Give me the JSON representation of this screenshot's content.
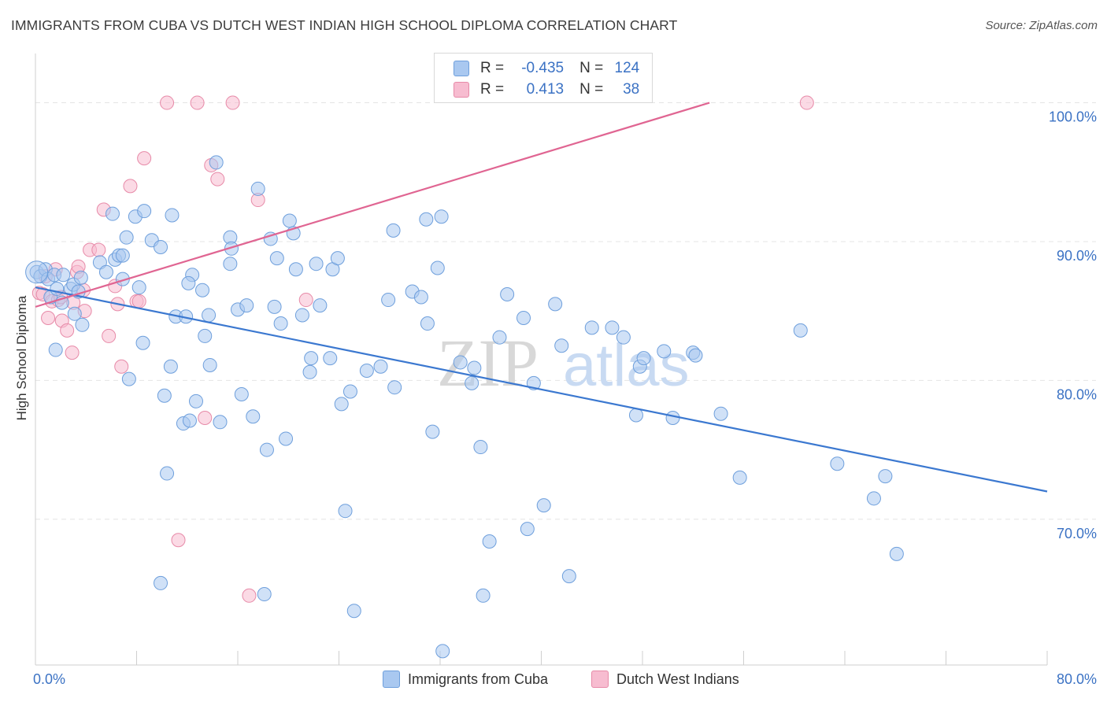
{
  "title": "IMMIGRANTS FROM CUBA VS DUTCH WEST INDIAN HIGH SCHOOL DIPLOMA CORRELATION CHART",
  "source": "Source: ZipAtlas.com",
  "watermark": {
    "zip": "ZIP",
    "atlas": "atlas"
  },
  "legend": {
    "rows": [
      {
        "r_label": "R =",
        "r_value": "-0.435",
        "n_label": "N =",
        "n_value": "124",
        "color": "#a9c8f0",
        "border": "#6e9fdc"
      },
      {
        "r_label": "R =",
        "r_value": "0.413",
        "n_label": "N =",
        "n_value": "38",
        "color": "#f7bcd0",
        "border": "#e78aa8"
      }
    ]
  },
  "bottom_legend": [
    "Immigrants from Cuba",
    "Dutch West Indians"
  ],
  "chart_data": {
    "type": "scatter",
    "xlabel": "",
    "ylabel": "High School Diploma",
    "x_tick_labels": [
      "0.0%",
      "80.0%"
    ],
    "y_tick_labels": [
      "100.0%",
      "90.0%",
      "80.0%",
      "70.0%"
    ],
    "y_ticks": [
      100,
      90,
      80,
      70
    ],
    "xlim": [
      0,
      80
    ],
    "ylim": [
      59.5,
      104
    ],
    "colors": {
      "cuba": "#6e9fdc",
      "cuba_fill": "#a9c8f0",
      "cuba_line": "#3b78d0",
      "dwi": "#e78aa8",
      "dwi_fill": "#f7bcd0",
      "dwi_line": "#e06592",
      "axis_text": "#3b72c4",
      "grid": "#e4e4e4"
    },
    "series": [
      {
        "name": "Immigrants from Cuba",
        "trend": {
          "x0": 0,
          "y0": 86.7,
          "x1": 80,
          "y1": 72.0
        },
        "points": [
          [
            0.1,
            87.8
          ],
          [
            0.4,
            87.5
          ],
          [
            0.8,
            88.0
          ],
          [
            1.0,
            87.3
          ],
          [
            1.2,
            86.0
          ],
          [
            1.5,
            87.6
          ],
          [
            1.7,
            86.6
          ],
          [
            2.1,
            85.6
          ],
          [
            2.2,
            87.6
          ],
          [
            2.8,
            86.6
          ],
          [
            3.0,
            86.9
          ],
          [
            3.1,
            84.8
          ],
          [
            3.4,
            86.4
          ],
          [
            3.6,
            87.4
          ],
          [
            3.7,
            84.0
          ],
          [
            1.6,
            82.2
          ],
          [
            5.1,
            88.5
          ],
          [
            5.6,
            87.8
          ],
          [
            6.1,
            92.0
          ],
          [
            6.3,
            88.7
          ],
          [
            6.6,
            89.0
          ],
          [
            6.9,
            89.0
          ],
          [
            7.2,
            90.3
          ],
          [
            7.4,
            80.1
          ],
          [
            7.9,
            91.8
          ],
          [
            8.2,
            86.7
          ],
          [
            8.6,
            92.2
          ],
          [
            8.5,
            82.7
          ],
          [
            9.2,
            90.1
          ],
          [
            9.9,
            89.6
          ],
          [
            10.2,
            78.9
          ],
          [
            10.7,
            81.0
          ],
          [
            10.8,
            91.9
          ],
          [
            11.1,
            84.6
          ],
          [
            11.7,
            76.9
          ],
          [
            11.9,
            84.6
          ],
          [
            12.2,
            77.1
          ],
          [
            12.4,
            87.6
          ],
          [
            12.7,
            78.5
          ],
          [
            13.2,
            86.5
          ],
          [
            13.4,
            83.2
          ],
          [
            13.7,
            84.7
          ],
          [
            13.8,
            81.1
          ],
          [
            14.3,
            95.7
          ],
          [
            14.6,
            77.0
          ],
          [
            15.4,
            90.3
          ],
          [
            15.5,
            89.5
          ],
          [
            15.4,
            88.4
          ],
          [
            16.0,
            85.1
          ],
          [
            16.3,
            79.0
          ],
          [
            16.7,
            85.4
          ],
          [
            17.2,
            77.4
          ],
          [
            17.6,
            93.8
          ],
          [
            18.3,
            75.0
          ],
          [
            18.6,
            90.2
          ],
          [
            18.9,
            85.3
          ],
          [
            19.1,
            88.8
          ],
          [
            19.4,
            84.1
          ],
          [
            19.8,
            75.8
          ],
          [
            20.1,
            91.5
          ],
          [
            20.4,
            90.6
          ],
          [
            20.6,
            88.0
          ],
          [
            21.1,
            84.7
          ],
          [
            21.7,
            80.6
          ],
          [
            21.8,
            81.6
          ],
          [
            22.2,
            88.4
          ],
          [
            22.5,
            85.4
          ],
          [
            23.3,
            81.6
          ],
          [
            23.5,
            88.0
          ],
          [
            23.9,
            88.8
          ],
          [
            24.2,
            78.3
          ],
          [
            24.5,
            70.6
          ],
          [
            24.9,
            79.2
          ],
          [
            26.2,
            80.7
          ],
          [
            27.3,
            81.0
          ],
          [
            27.9,
            85.8
          ],
          [
            28.3,
            90.8
          ],
          [
            28.4,
            79.5
          ],
          [
            29.8,
            86.4
          ],
          [
            30.5,
            86.0
          ],
          [
            30.9,
            91.6
          ],
          [
            31.0,
            84.1
          ],
          [
            31.4,
            76.3
          ],
          [
            31.8,
            88.1
          ],
          [
            32.1,
            91.8
          ],
          [
            33.6,
            81.3
          ],
          [
            34.5,
            79.8
          ],
          [
            34.7,
            80.9
          ],
          [
            35.2,
            75.2
          ],
          [
            35.9,
            68.4
          ],
          [
            36.7,
            83.1
          ],
          [
            37.3,
            86.2
          ],
          [
            38.6,
            84.5
          ],
          [
            38.9,
            69.3
          ],
          [
            39.4,
            79.8
          ],
          [
            40.2,
            71.0
          ],
          [
            41.1,
            85.5
          ],
          [
            41.6,
            82.5
          ],
          [
            42.2,
            65.9
          ],
          [
            44.0,
            83.8
          ],
          [
            45.6,
            83.8
          ],
          [
            46.5,
            83.1
          ],
          [
            47.5,
            77.5
          ],
          [
            47.8,
            81.0
          ],
          [
            48.1,
            81.6
          ],
          [
            49.7,
            82.1
          ],
          [
            50.4,
            77.3
          ],
          [
            52.0,
            82.0
          ],
          [
            52.2,
            81.8
          ],
          [
            54.2,
            77.6
          ],
          [
            55.7,
            73.0
          ],
          [
            60.5,
            83.6
          ],
          [
            63.4,
            74.0
          ],
          [
            66.3,
            71.5
          ],
          [
            67.2,
            73.1
          ],
          [
            68.1,
            67.5
          ],
          [
            10.4,
            73.3
          ],
          [
            9.9,
            65.4
          ],
          [
            18.1,
            64.6
          ],
          [
            25.2,
            63.4
          ],
          [
            35.4,
            64.5
          ],
          [
            32.2,
            60.5
          ],
          [
            12.1,
            87.0
          ],
          [
            6.9,
            87.3
          ]
        ]
      },
      {
        "name": "Dutch West Indians",
        "trend": {
          "x0": 0,
          "y0": 85.3,
          "x1": 53.3,
          "y1": 100.0
        },
        "points": [
          [
            0.3,
            86.3
          ],
          [
            0.6,
            86.2
          ],
          [
            1.0,
            84.5
          ],
          [
            1.3,
            85.7
          ],
          [
            1.8,
            85.8
          ],
          [
            2.1,
            84.3
          ],
          [
            2.5,
            83.6
          ],
          [
            2.9,
            82.0
          ],
          [
            3.0,
            85.6
          ],
          [
            3.3,
            87.8
          ],
          [
            3.9,
            85.0
          ],
          [
            4.3,
            89.4
          ],
          [
            5.0,
            89.4
          ],
          [
            5.4,
            92.3
          ],
          [
            5.8,
            83.2
          ],
          [
            6.3,
            86.8
          ],
          [
            6.8,
            81.0
          ],
          [
            7.5,
            94.0
          ],
          [
            8.0,
            85.7
          ],
          [
            8.2,
            85.7
          ],
          [
            8.6,
            96.0
          ],
          [
            10.4,
            100.0
          ],
          [
            12.8,
            100.0
          ],
          [
            13.4,
            77.3
          ],
          [
            13.9,
            95.5
          ],
          [
            14.4,
            94.5
          ],
          [
            15.6,
            100.0
          ],
          [
            16.9,
            64.5
          ],
          [
            17.6,
            93.0
          ],
          [
            21.4,
            85.8
          ],
          [
            11.3,
            68.5
          ],
          [
            3.4,
            88.2
          ],
          [
            0.8,
            87.5
          ],
          [
            1.6,
            88.0
          ],
          [
            61.0,
            100.0
          ],
          [
            6.5,
            85.5
          ],
          [
            2.0,
            86.0
          ],
          [
            3.8,
            86.5
          ]
        ]
      }
    ]
  }
}
